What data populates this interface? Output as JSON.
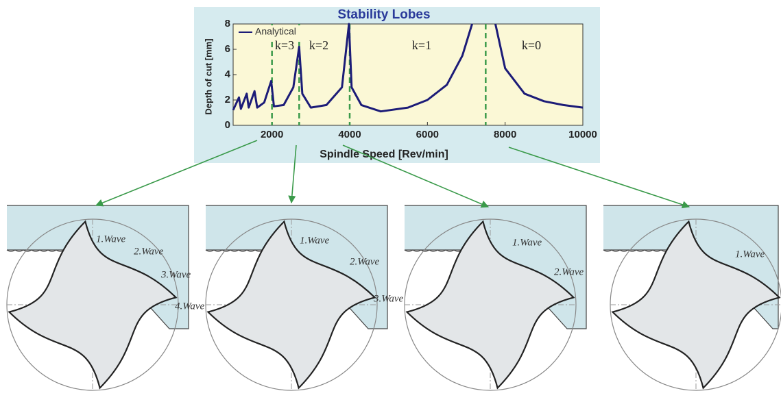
{
  "chart_data": {
    "type": "line",
    "title": "Stability Lobes",
    "xlabel": "Spindle Speed [Rev/min]",
    "ylabel": "Depth of cut [mm]",
    "x": [
      1000,
      1150,
      1200,
      1350,
      1400,
      1550,
      1620,
      1800,
      1980,
      2050,
      2300,
      2550,
      2700,
      2780,
      3000,
      3400,
      3800,
      3980,
      4050,
      4300,
      4800,
      5500,
      6000,
      6500,
      6900,
      7150,
      7500,
      7750,
      8000,
      8500,
      9000,
      9500,
      10000
    ],
    "series": [
      {
        "name": "Analytical",
        "color": "#1c1c78",
        "values": [
          1.2,
          2.2,
          1.3,
          2.5,
          1.4,
          2.7,
          1.4,
          1.8,
          3.5,
          1.5,
          1.6,
          3.0,
          6.2,
          2.5,
          1.4,
          1.6,
          3.0,
          8,
          3,
          1.6,
          1.1,
          1.4,
          2.0,
          3.2,
          5.5,
          8,
          null,
          8,
          4.5,
          2.5,
          1.9,
          1.6,
          1.4
        ]
      }
    ],
    "xlim": [
      1000,
      10000
    ],
    "ylim": [
      0,
      8
    ],
    "xticks": [
      2000,
      4000,
      6000,
      8000,
      10000
    ],
    "yticks": [
      0,
      2,
      4,
      6,
      8
    ],
    "dividers": [
      2000,
      2700,
      4000,
      7500
    ],
    "divider_color": "#3a9a4a",
    "annotations": [
      "k=3",
      "k=2",
      "k=1",
      "k=0"
    ]
  },
  "panels": [
    {
      "waves": [
        "1.Wave",
        "2.Wave",
        "3.Wave",
        "4.Wave"
      ]
    },
    {
      "waves": [
        "1.Wave",
        "2.Wave",
        "3.Wave"
      ]
    },
    {
      "waves": [
        "1.Wave",
        "2.Wave"
      ]
    },
    {
      "waves": [
        "1.Wave"
      ]
    }
  ]
}
